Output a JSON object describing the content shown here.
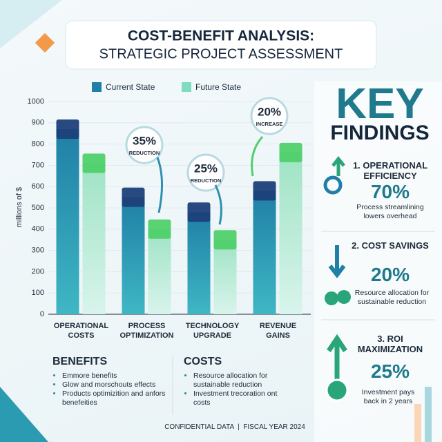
{
  "chart_data": {
    "type": "bar",
    "title": "COST-BENEFIT ANALYSIS:",
    "subtitle": "STRATEGIC PROJECT ASSESSMENT",
    "y_label": "millions of $",
    "categories": [
      "OPERATIONAL COSTS",
      "PROCESS OPTIMIZATION",
      "TECHNOLOGY UPGRADE",
      "REVENUE GAINS"
    ],
    "series": [
      {
        "name": "Current State",
        "color": "#1f7fa6",
        "values": [
          870,
          550,
          480,
          580
        ]
      },
      {
        "name": "Future State",
        "color": "#7fdcc0",
        "values": [
          710,
          400,
          350,
          760
        ]
      }
    ],
    "ylim": [
      0,
      1000
    ],
    "yticks": [
      0,
      100,
      200,
      300,
      400,
      500,
      600,
      700,
      800,
      900,
      1000
    ],
    "grid": true,
    "legend": "top",
    "annotations": [
      {
        "text": "35%",
        "subtext": "REDUCTION"
      },
      {
        "text": "25%",
        "subtext": "REDUCTION"
      },
      {
        "text": "20%",
        "subtext": "INCREASE"
      }
    ]
  },
  "key_findings": {
    "title": "KEY",
    "subtitle": "FINDINGS",
    "items": [
      {
        "heading": "1. OPERATIONAL EFFICIENCY",
        "value": "70%",
        "text": "Process streamlining lowers overhead"
      },
      {
        "heading": "2. COST SAVINGS",
        "value": "20%",
        "text": "Resource allocation for sustainable reduction"
      },
      {
        "heading": "3. ROI MAXIMIZATION",
        "value": "25%",
        "text": "Investment pays back in 2 years"
      }
    ]
  },
  "benefits": {
    "title": "BENEFITS",
    "items": [
      "Emmore benefits",
      "Glow and morschouts effects",
      "Products optimizition and anfors benefeities"
    ]
  },
  "costs": {
    "title": "COSTS",
    "items": [
      "Resource allocation for sustainable reduction",
      "Investment trecoration ont costs"
    ]
  },
  "footer": "CONFIDENTIAL DATA  |  FISCAL YEAR 2024"
}
